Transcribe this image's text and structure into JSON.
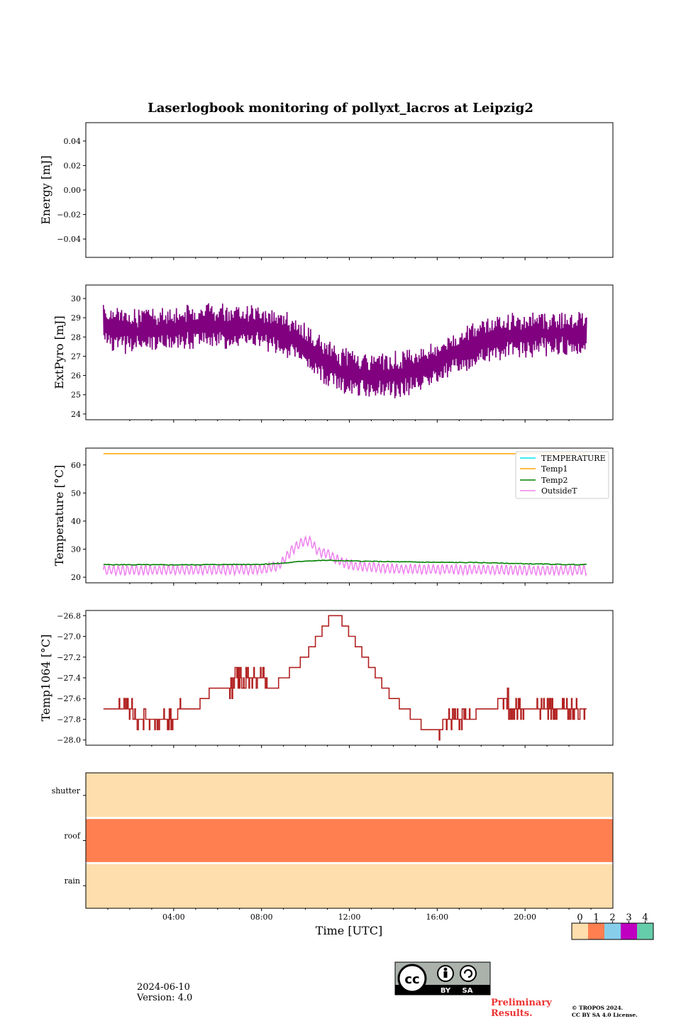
{
  "title": "Laserlogbook monitoring of pollyxt_lacros at Leipzig2",
  "date_label": "2024-06-10",
  "version_label": "Version: 4.0",
  "preliminary": "Preliminary\nResults.",
  "preliminary_line1": "Preliminary",
  "preliminary_line2": "Results.",
  "copyright_line1": "© TROPOS 2024.",
  "copyright_line2": "CC BY SA 4.0 License.",
  "cc_badge": {
    "by": "BY",
    "sa": "SA"
  },
  "colors": {
    "pyro": "#800080",
    "temperature": "#00e5ee",
    "temp1": "#ffa500",
    "temp2": "#008000",
    "outside": "#ee82ee",
    "temp1064": "#b22222",
    "status": [
      "#ffdead",
      "#ff7f50",
      "#87ceeb",
      "#c000c0",
      "#66cdaa"
    ],
    "preliminary": "#ee3333"
  },
  "chart_data": [
    {
      "type": "line",
      "ylabel": "Energy [mJ]",
      "ylim": [
        -0.055,
        0.055
      ],
      "yticks": [
        0.04,
        0.02,
        0.0,
        -0.02,
        -0.04
      ],
      "yticklabels": [
        "0.04",
        "0.02",
        "0.00",
        "−0.02",
        "−0.04"
      ],
      "series": []
    },
    {
      "type": "line",
      "ylabel": "ExtPyro [mJ]",
      "ylim": [
        23.7,
        30.7
      ],
      "yticks": [
        24,
        25,
        26,
        27,
        28,
        29,
        30
      ],
      "x_hours": [
        0.8,
        1.5,
        2.0,
        2.5,
        3.0,
        3.5,
        4.0,
        4.5,
        5.0,
        5.5,
        6.0,
        6.5,
        7.0,
        7.5,
        8.0,
        8.5,
        9.0,
        9.5,
        10.0,
        10.5,
        11.0,
        11.5,
        12.0,
        12.5,
        13.0,
        13.5,
        14.0,
        14.5,
        15.0,
        15.5,
        16.0,
        16.5,
        17.0,
        17.5,
        18.0,
        18.5,
        19.0,
        19.5,
        20.0,
        20.5,
        21.0,
        21.5,
        22.0,
        22.5,
        22.8
      ],
      "mean": [
        28.5,
        28.4,
        28.3,
        28.3,
        28.4,
        28.4,
        28.5,
        28.5,
        28.6,
        28.6,
        28.5,
        28.5,
        28.6,
        28.6,
        28.5,
        28.4,
        28.2,
        27.9,
        27.5,
        27.0,
        26.6,
        26.3,
        26.2,
        26.1,
        26.0,
        26.0,
        26.0,
        26.1,
        26.3,
        26.5,
        26.7,
        27.0,
        27.2,
        27.5,
        27.7,
        27.9,
        28.0,
        28.1,
        28.1,
        28.2,
        28.2,
        28.2,
        28.2,
        28.2,
        28.2
      ],
      "spread": 0.9,
      "series": [
        {
          "name": "ExtPyro",
          "color": "#800080"
        }
      ]
    },
    {
      "type": "line",
      "ylabel": "Temperature [°C]",
      "ylim": [
        18,
        66
      ],
      "yticks": [
        20,
        30,
        40,
        50,
        60
      ],
      "legend": [
        "TEMPERATURE",
        "Temp1",
        "Temp2",
        "OutsideT"
      ],
      "legend_position": "top-right",
      "series": [
        {
          "name": "TEMPERATURE",
          "values": []
        },
        {
          "name": "Temp1",
          "x": [
            0.0,
            23.0
          ],
          "values": [
            64.0,
            64.0
          ]
        },
        {
          "name": "Temp2",
          "x": [
            0.0,
            4.0,
            8.0,
            9.0,
            10.0,
            11.0,
            12.0,
            14.0,
            16.0,
            18.0,
            20.0,
            22.0,
            23.0
          ],
          "values": [
            24.5,
            24.4,
            24.6,
            25.0,
            25.8,
            26.0,
            25.8,
            25.5,
            25.3,
            25.2,
            24.8,
            24.5,
            24.5
          ]
        },
        {
          "name": "OutsideT",
          "x": [
            0.0,
            2.0,
            4.0,
            6.0,
            8.0,
            8.8,
            9.3,
            9.8,
            10.2,
            10.6,
            11.0,
            11.6,
            12.2,
            14.0,
            16.0,
            18.0,
            20.0,
            22.0,
            23.0
          ],
          "values": [
            22.5,
            22.5,
            22.6,
            22.7,
            22.8,
            24.0,
            29.0,
            32.5,
            33.0,
            29.0,
            28.5,
            25.5,
            24.0,
            23.0,
            22.8,
            22.7,
            22.5,
            22.5,
            22.5
          ],
          "oscillation": 1.6
        }
      ]
    },
    {
      "type": "line",
      "ylabel": "Temp1064 [°C]",
      "ylim": [
        -28.05,
        -26.75
      ],
      "yticks": [
        -26.8,
        -27.0,
        -27.2,
        -27.4,
        -27.6,
        -27.8,
        -28.0
      ],
      "yticklabels": [
        "−26.8",
        "−27.0",
        "−27.2",
        "−27.4",
        "−27.6",
        "−27.8",
        "−28.0"
      ],
      "x_hours": [
        0.8,
        1.8,
        2.5,
        3.0,
        3.5,
        4.0,
        4.5,
        5.0,
        5.8,
        6.5,
        7.0,
        7.5,
        8.0,
        8.5,
        9.0,
        9.5,
        10.0,
        10.3,
        10.6,
        10.9,
        11.2,
        11.5,
        11.8,
        12.1,
        12.4,
        12.7,
        13.0,
        13.3,
        13.6,
        14.0,
        14.5,
        15.0,
        15.5,
        16.0,
        16.5,
        17.0,
        17.5,
        18.0,
        18.5,
        19.0,
        19.5,
        20.0,
        20.5,
        21.0,
        21.5,
        22.0,
        22.8
      ],
      "values": [
        -27.7,
        -27.7,
        -27.8,
        -27.8,
        -27.8,
        -27.8,
        -27.7,
        -27.7,
        -27.5,
        -27.5,
        -27.4,
        -27.4,
        -27.4,
        -27.5,
        -27.4,
        -27.3,
        -27.2,
        -27.1,
        -27.0,
        -26.9,
        -26.8,
        -26.8,
        -26.9,
        -27.0,
        -27.1,
        -27.2,
        -27.3,
        -27.4,
        -27.5,
        -27.6,
        -27.7,
        -27.8,
        -27.9,
        -27.9,
        -27.8,
        -27.8,
        -27.8,
        -27.7,
        -27.7,
        -27.6,
        -27.7,
        -27.7,
        -27.7,
        -27.7,
        -27.7,
        -27.7,
        -27.7
      ],
      "series": [
        {
          "name": "Temp1064",
          "color": "#b22222"
        }
      ]
    },
    {
      "type": "heatmap",
      "xlabel": "Time [UTC]",
      "rows": [
        "shutter",
        "roof",
        "rain"
      ],
      "row_values": [
        0,
        1,
        0
      ],
      "xlim": [
        0,
        24
      ],
      "xticks": [
        4,
        8,
        12,
        16,
        20
      ],
      "xticklabels": [
        "04:00",
        "08:00",
        "12:00",
        "16:00",
        "20:00"
      ],
      "colorbar_labels": [
        "0",
        "1",
        "2",
        "3",
        "4"
      ]
    }
  ]
}
